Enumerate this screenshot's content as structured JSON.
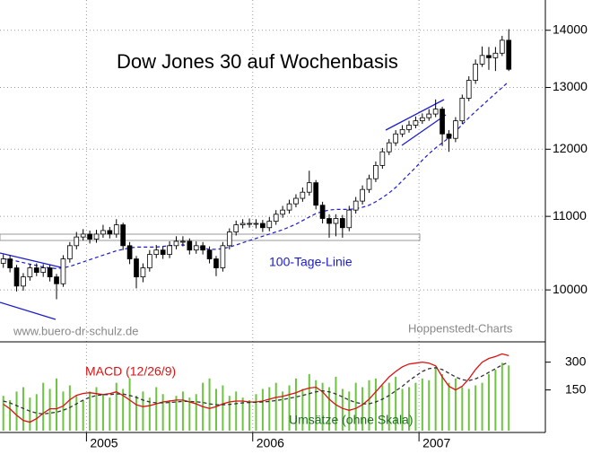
{
  "chart_data": {
    "type": "candlestick",
    "title": "Dow Jones 30 auf Wochenbasis",
    "annotations": [
      "www.buero-dr-schulz.de",
      "Hoppenstedt-Charts"
    ],
    "x": [
      2004.5,
      2004.54,
      2004.58,
      2004.62,
      2004.66,
      2004.7,
      2004.74,
      2004.78,
      2004.82,
      2004.86,
      2004.9,
      2004.94,
      2004.98,
      2005.02,
      2005.06,
      2005.1,
      2005.14,
      2005.18,
      2005.22,
      2005.26,
      2005.3,
      2005.34,
      2005.38,
      2005.42,
      2005.46,
      2005.5,
      2005.54,
      2005.58,
      2005.62,
      2005.66,
      2005.7,
      2005.74,
      2005.78,
      2005.82,
      2005.86,
      2005.9,
      2005.94,
      2005.98,
      2006.02,
      2006.06,
      2006.1,
      2006.14,
      2006.18,
      2006.22,
      2006.26,
      2006.3,
      2006.34,
      2006.38,
      2006.42,
      2006.46,
      2006.5,
      2006.54,
      2006.58,
      2006.62,
      2006.66,
      2006.7,
      2006.74,
      2006.78,
      2006.82,
      2006.86,
      2006.9,
      2006.94,
      2006.98,
      2007.02,
      2007.06,
      2007.1,
      2007.14,
      2007.18,
      2007.22,
      2007.26,
      2007.3,
      2007.34,
      2007.38,
      2007.42,
      2007.46,
      2007.5,
      2007.54
    ],
    "xlim": [
      2004.48,
      2007.76
    ],
    "xticks": [
      2005,
      2006,
      2007
    ],
    "open": [
      10350,
      10410,
      10290,
      10050,
      10170,
      10290,
      10230,
      10290,
      10170,
      10080,
      10410,
      10590,
      10710,
      10750,
      10680,
      10750,
      10800,
      10750,
      10880,
      10590,
      10410,
      10170,
      10290,
      10470,
      10530,
      10470,
      10590,
      10650,
      10650,
      10530,
      10590,
      10530,
      10410,
      10290,
      10590,
      10780,
      10880,
      10900,
      10900,
      10900,
      10840,
      10930,
      11030,
      11090,
      11180,
      11260,
      11350,
      11490,
      11160,
      10970,
      10900,
      10970,
      10840,
      11090,
      11220,
      11390,
      11550,
      11750,
      11960,
      12100,
      12240,
      12310,
      12380,
      12450,
      12500,
      12560,
      12640,
      12240,
      12170,
      12450,
      12820,
      13120,
      13400,
      13550,
      13510,
      13590,
      13820
    ],
    "high": [
      10470,
      10460,
      10330,
      10220,
      10340,
      10350,
      10340,
      10330,
      10210,
      10460,
      10640,
      10780,
      10820,
      10800,
      10810,
      10880,
      10850,
      10960,
      10910,
      10640,
      10450,
      10350,
      10530,
      10600,
      10580,
      10650,
      10720,
      10720,
      10690,
      10650,
      10640,
      10580,
      10450,
      10640,
      10830,
      10940,
      10960,
      10970,
      10960,
      10950,
      10990,
      11090,
      11150,
      11240,
      11320,
      11420,
      11670,
      11530,
      11210,
      11030,
      11030,
      11020,
      11150,
      11280,
      11450,
      11610,
      11810,
      12020,
      12160,
      12300,
      12380,
      12450,
      12520,
      12570,
      12640,
      12800,
      12680,
      12300,
      12510,
      12880,
      13190,
      13480,
      13710,
      13700,
      13700,
      13900,
      14020
    ],
    "low": [
      10290,
      10230,
      9980,
      9990,
      10120,
      10180,
      10170,
      10110,
      9880,
      10040,
      10360,
      10540,
      10660,
      10620,
      10630,
      10700,
      10690,
      10700,
      10530,
      10340,
      10020,
      10100,
      10240,
      10420,
      10410,
      10420,
      10540,
      10580,
      10470,
      10480,
      10470,
      10350,
      10180,
      10240,
      10540,
      10730,
      10830,
      10840,
      10830,
      10780,
      10790,
      10880,
      10980,
      11040,
      11130,
      11210,
      11300,
      11100,
      10900,
      10700,
      10720,
      10700,
      10790,
      11040,
      11170,
      11340,
      11500,
      11700,
      11910,
      12050,
      12190,
      12260,
      12330,
      12400,
      12450,
      12510,
      12050,
      11960,
      12110,
      12400,
      12770,
      13060,
      13350,
      13300,
      13280,
      13540,
      13280
    ],
    "close": [
      10410,
      10290,
      10050,
      10170,
      10290,
      10230,
      10290,
      10170,
      10080,
      10410,
      10590,
      10710,
      10750,
      10680,
      10750,
      10800,
      10750,
      10880,
      10590,
      10410,
      10170,
      10290,
      10470,
      10530,
      10470,
      10590,
      10650,
      10650,
      10530,
      10590,
      10530,
      10410,
      10290,
      10590,
      10780,
      10880,
      10900,
      10900,
      10900,
      10840,
      10930,
      11030,
      11090,
      11180,
      11260,
      11350,
      11490,
      11160,
      10970,
      10900,
      10970,
      10840,
      11090,
      11220,
      11390,
      11550,
      11750,
      11960,
      12100,
      12240,
      12310,
      12380,
      12450,
      12500,
      12560,
      12640,
      12240,
      12170,
      12450,
      12820,
      13120,
      13400,
      13550,
      13510,
      13590,
      13820,
      13310
    ],
    "up_color": "#ffffff",
    "down_color": "#000000",
    "ylim": [
      9360,
      14560
    ],
    "yticks": [
      10000,
      11000,
      12000,
      13000,
      14000
    ],
    "log_scale": true,
    "grid": true,
    "overlay": {
      "name": "100-Tage-Linie",
      "color": "#1c1ccc",
      "values": [
        10410,
        10400,
        10380,
        10360,
        10340,
        10320,
        10300,
        10290,
        10280,
        10290,
        10310,
        10340,
        10370,
        10400,
        10430,
        10460,
        10490,
        10520,
        10540,
        10560,
        10570,
        10570,
        10570,
        10570,
        10580,
        10590,
        10600,
        10600,
        10590,
        10580,
        10560,
        10540,
        10540,
        10550,
        10570,
        10600,
        10630,
        10660,
        10690,
        10720,
        10750,
        10780,
        10810,
        10850,
        10890,
        10940,
        10990,
        11040,
        11070,
        11090,
        11100,
        11100,
        11100,
        11110,
        11130,
        11160,
        11210,
        11270,
        11340,
        11420,
        11520,
        11620,
        11720,
        11830,
        11930,
        12020,
        12100,
        12180,
        12280,
        12390,
        12500,
        12600,
        12700,
        12800,
        12900,
        13000,
        13100
      ]
    },
    "indicator": {
      "ylim": [
        -70,
        400
      ],
      "yticks": [
        150,
        300
      ],
      "series": [
        {
          "name": "MACD (12/26/9)",
          "color": "#dd1111",
          "values": [
            73,
            48,
            14,
            -15,
            -24,
            -5,
            24,
            48,
            48,
            63,
            97,
            121,
            131,
            135,
            130,
            125,
            130,
            140,
            120,
            95,
            70,
            60,
            65,
            75,
            85,
            90,
            95,
            95,
            85,
            75,
            60,
            50,
            60,
            75,
            85,
            90,
            90,
            85,
            85,
            90,
            100,
            110,
            115,
            125,
            135,
            150,
            160,
            165,
            140,
            100,
            70,
            50,
            40,
            50,
            70,
            100,
            140,
            180,
            220,
            250,
            275,
            290,
            295,
            300,
            295,
            280,
            220,
            170,
            150,
            170,
            210,
            260,
            300,
            320,
            330,
            345,
            335
          ]
        },
        {
          "color": "#333333",
          "dashed": true,
          "values": [
            90,
            80,
            65,
            50,
            35,
            25,
            20,
            25,
            30,
            40,
            55,
            75,
            95,
            110,
            120,
            125,
            125,
            128,
            128,
            120,
            110,
            95,
            85,
            80,
            80,
            82,
            85,
            88,
            88,
            86,
            82,
            75,
            70,
            70,
            72,
            76,
            80,
            82,
            83,
            85,
            88,
            93,
            98,
            105,
            112,
            120,
            130,
            140,
            145,
            140,
            128,
            112,
            95,
            82,
            75,
            75,
            85,
            100,
            120,
            145,
            170,
            200,
            225,
            250,
            265,
            270,
            260,
            240,
            220,
            205,
            200,
            210,
            225,
            245,
            265,
            285,
            300
          ]
        }
      ],
      "volume": {
        "name": "Umsätze (ohne Skala)",
        "color": "#6cc440",
        "label_color": "#207020",
        "ylim": [
          0,
          100
        ],
        "values": [
          40,
          35,
          45,
          50,
          38,
          42,
          55,
          48,
          60,
          45,
          52,
          40,
          35,
          45,
          50,
          42,
          38,
          55,
          48,
          60,
          40,
          45,
          38,
          50,
          42,
          35,
          40,
          45,
          38,
          42,
          55,
          60,
          48,
          52,
          40,
          45,
          38,
          35,
          42,
          48,
          50,
          55,
          45,
          52,
          60,
          48,
          65,
          58,
          55,
          50,
          62,
          48,
          45,
          55,
          50,
          58,
          60,
          52,
          55,
          62,
          48,
          50,
          55,
          60,
          58,
          72,
          65,
          55,
          60,
          50,
          48,
          52,
          55,
          65,
          70,
          78,
          75
        ]
      }
    }
  }
}
